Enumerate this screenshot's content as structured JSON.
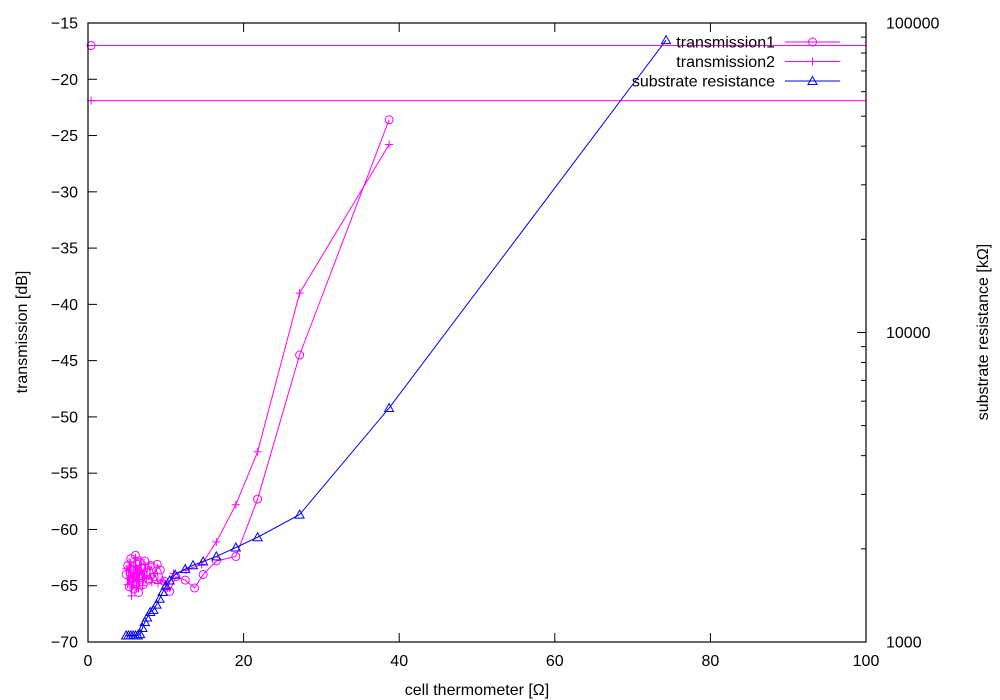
{
  "chart_data": {
    "type": "line",
    "xlabel": "cell thermometer [Ω]",
    "ylabel": "transmission [dB]",
    "y2label": "substrate resistance [kΩ]",
    "xlim": [
      0,
      100
    ],
    "ylim": [
      -70,
      -15
    ],
    "y2lim": [
      1000,
      100000
    ],
    "y2scale": "log",
    "xticks": [
      0,
      20,
      40,
      60,
      80,
      100
    ],
    "yticks": [
      -70,
      -65,
      -60,
      -55,
      -50,
      -45,
      -40,
      -35,
      -30,
      -25,
      -20,
      -15
    ],
    "y2ticks": [
      1000,
      10000,
      100000
    ],
    "grid": false,
    "legend_position": "top-right",
    "colors": {
      "transmission": "#ff00ff",
      "resistance": "#0000ff"
    },
    "series": [
      {
        "name": "transmission1",
        "axis": "y",
        "marker": "circle",
        "color": "#ff00ff",
        "points": [
          [
            4.9,
            -64.0
          ],
          [
            5.1,
            -63.2
          ],
          [
            5.3,
            -65.1
          ],
          [
            5.5,
            -62.6
          ],
          [
            5.6,
            -64.4
          ],
          [
            5.8,
            -63.6
          ],
          [
            5.9,
            -65.3
          ],
          [
            6.1,
            -62.3
          ],
          [
            6.2,
            -64.8
          ],
          [
            6.3,
            -63.1
          ],
          [
            6.5,
            -65.6
          ],
          [
            6.6,
            -62.9
          ],
          [
            6.8,
            -64.1
          ],
          [
            6.9,
            -63.4
          ],
          [
            7.1,
            -64.9
          ],
          [
            7.3,
            -62.8
          ],
          [
            7.5,
            -63.8
          ],
          [
            7.8,
            -64.5
          ],
          [
            8.1,
            -63.2
          ],
          [
            8.5,
            -64.2
          ],
          [
            8.9,
            -63.1
          ],
          [
            9.3,
            -63.6
          ],
          [
            9.8,
            -64.6
          ],
          [
            10.5,
            -65.5
          ],
          [
            11.3,
            -64.2
          ],
          [
            12.5,
            -64.5
          ],
          [
            13.7,
            -65.2
          ],
          [
            14.8,
            -64.0
          ],
          [
            16.5,
            -62.8
          ],
          [
            19.0,
            -62.4
          ],
          [
            21.8,
            -57.3
          ],
          [
            27.2,
            -44.5
          ],
          [
            38.7,
            -23.6
          ]
        ]
      },
      {
        "name": "transmission2",
        "axis": "y",
        "marker": "plus",
        "color": "#ff00ff",
        "points": [
          [
            4.9,
            -63.5
          ],
          [
            5.1,
            -64.9
          ],
          [
            5.3,
            -62.9
          ],
          [
            5.5,
            -64.1
          ],
          [
            5.6,
            -65.9
          ],
          [
            5.8,
            -63.3
          ],
          [
            5.9,
            -64.6
          ],
          [
            6.1,
            -62.5
          ],
          [
            6.2,
            -65.2
          ],
          [
            6.4,
            -63.9
          ],
          [
            6.6,
            -64.3
          ],
          [
            6.8,
            -62.7
          ],
          [
            7.0,
            -65.0
          ],
          [
            7.2,
            -63.7
          ],
          [
            7.5,
            -64.4
          ],
          [
            7.8,
            -63.0
          ],
          [
            8.2,
            -64.7
          ],
          [
            8.6,
            -63.9
          ],
          [
            9.0,
            -64.8
          ],
          [
            9.5,
            -64.5
          ],
          [
            10.2,
            -65.2
          ],
          [
            11.0,
            -63.9
          ],
          [
            12.6,
            -63.6
          ],
          [
            14.6,
            -63.1
          ],
          [
            16.5,
            -61.1
          ],
          [
            19.0,
            -57.8
          ],
          [
            21.8,
            -53.1
          ],
          [
            27.2,
            -39.0
          ],
          [
            38.7,
            -25.8
          ]
        ]
      },
      {
        "name": "substrate resistance",
        "axis": "y2",
        "marker": "triangle",
        "color": "#0000ff",
        "points": [
          [
            4.9,
            1050
          ],
          [
            5.2,
            1050
          ],
          [
            5.5,
            1050
          ],
          [
            5.8,
            1050
          ],
          [
            6.1,
            1050
          ],
          [
            6.4,
            1050
          ],
          [
            6.7,
            1060
          ],
          [
            7.0,
            1110
          ],
          [
            7.3,
            1160
          ],
          [
            7.6,
            1200
          ],
          [
            8.0,
            1250
          ],
          [
            8.4,
            1270
          ],
          [
            8.8,
            1320
          ],
          [
            9.2,
            1380
          ],
          [
            9.6,
            1450
          ],
          [
            10.0,
            1520
          ],
          [
            10.5,
            1580
          ],
          [
            11.2,
            1650
          ],
          [
            12.5,
            1720
          ],
          [
            13.5,
            1770
          ],
          [
            14.8,
            1820
          ],
          [
            16.5,
            1890
          ],
          [
            19.0,
            2020
          ],
          [
            21.8,
            2180
          ],
          [
            27.2,
            2580
          ],
          [
            38.7,
            5700
          ],
          [
            74.3,
            88000
          ]
        ]
      }
    ],
    "horizontal_lines": [
      {
        "y": -17.0,
        "color": "#ff00ff",
        "marker": "circle",
        "marker_x": 0.4
      },
      {
        "y": -21.9,
        "color": "#ff00ff",
        "marker": "plus",
        "marker_x": 0.4
      }
    ]
  }
}
